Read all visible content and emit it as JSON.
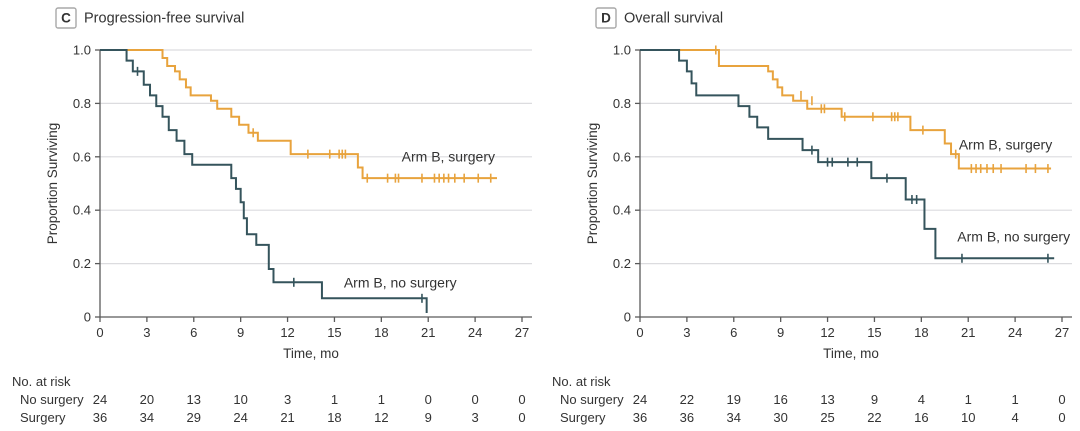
{
  "figure_labels": {
    "panel_c": "Progression-free survival",
    "panel_d": "Overall survival"
  },
  "colors": {
    "surgery": "#E8A33D",
    "no_surgery": "#35545C",
    "grid": "#dcdcdf",
    "axis": "#5a5a5a",
    "text": "#333333",
    "title_box_border": "#a8a8a8"
  },
  "chart_data": [
    {
      "type": "line",
      "subtype": "kaplan-meier-step",
      "panel_letter": "C",
      "title": "Progression-free survival",
      "xlabel": "Time, mo",
      "ylabel": "Proportion Surviving",
      "xlim": [
        0,
        27
      ],
      "ylim": [
        0,
        1.0
      ],
      "xticks": [
        0,
        3,
        6,
        9,
        12,
        15,
        18,
        21,
        24,
        27
      ],
      "xtick_labels": [
        "0",
        "3",
        "6",
        "9",
        "12",
        "15",
        "18",
        "21",
        "24",
        "27"
      ],
      "yticks": [
        0,
        0.2,
        0.4,
        0.6,
        0.8,
        1.0
      ],
      "ytick_labels": [
        "0",
        "0.2",
        "0.4",
        "0.6",
        "0.8",
        "1.0"
      ],
      "grid": "horizontal",
      "series": [
        {
          "name": "Arm B, surgery",
          "color": "#E8A33D",
          "points": [
            [
              0,
              1.0
            ],
            [
              4.0,
              0.97
            ],
            [
              4.3,
              0.94
            ],
            [
              4.8,
              0.92
            ],
            [
              5.1,
              0.89
            ],
            [
              5.5,
              0.86
            ],
            [
              5.8,
              0.83
            ],
            [
              7.1,
              0.81
            ],
            [
              7.5,
              0.78
            ],
            [
              8.4,
              0.75
            ],
            [
              8.9,
              0.72
            ],
            [
              9.5,
              0.69
            ],
            [
              10.1,
              0.66
            ],
            [
              12.2,
              0.61
            ],
            [
              16.5,
              0.56
            ],
            [
              16.8,
              0.52
            ]
          ],
          "end_x": 25.4,
          "censors": [
            [
              9.8,
              0.69
            ],
            [
              13.3,
              0.61
            ],
            [
              14.7,
              0.61
            ],
            [
              15.3,
              0.61
            ],
            [
              15.5,
              0.61
            ],
            [
              15.7,
              0.61
            ],
            [
              17.1,
              0.52
            ],
            [
              18.4,
              0.52
            ],
            [
              18.9,
              0.52
            ],
            [
              19.1,
              0.52
            ],
            [
              20.6,
              0.52
            ],
            [
              21.4,
              0.52
            ],
            [
              21.7,
              0.52
            ],
            [
              22.0,
              0.52
            ],
            [
              22.3,
              0.52
            ],
            [
              22.7,
              0.52
            ],
            [
              23.3,
              0.52
            ],
            [
              24.2,
              0.52
            ],
            [
              25.0,
              0.52
            ]
          ],
          "label": {
            "text": "Arm B, surgery",
            "x": 19.3,
            "y": 0.6
          }
        },
        {
          "name": "Arm B, no surgery",
          "color": "#35545C",
          "points": [
            [
              0,
              1.0
            ],
            [
              1.7,
              0.96
            ],
            [
              2.1,
              0.92
            ],
            [
              2.8,
              0.87
            ],
            [
              3.2,
              0.83
            ],
            [
              3.6,
              0.79
            ],
            [
              4.0,
              0.75
            ],
            [
              4.4,
              0.7
            ],
            [
              4.9,
              0.66
            ],
            [
              5.4,
              0.61
            ],
            [
              5.9,
              0.57
            ],
            [
              8.4,
              0.52
            ],
            [
              8.7,
              0.48
            ],
            [
              9.0,
              0.43
            ],
            [
              9.2,
              0.37
            ],
            [
              9.4,
              0.31
            ],
            [
              10.0,
              0.27
            ],
            [
              10.8,
              0.18
            ],
            [
              11.1,
              0.13
            ],
            [
              14.2,
              0.07
            ],
            [
              20.9,
              0.015
            ]
          ],
          "end_x": 20.9,
          "censors": [
            [
              2.4,
              0.92
            ],
            [
              12.4,
              0.13
            ],
            [
              20.6,
              0.07
            ]
          ],
          "label": {
            "text": "Arm B, no surgery",
            "x": 15.6,
            "y": 0.128
          }
        }
      ],
      "at_risk": {
        "heading": "No. at risk",
        "times": [
          0,
          3,
          6,
          9,
          12,
          15,
          18,
          21,
          24,
          27
        ],
        "rows": [
          {
            "label": "No surgery",
            "counts": [
              24,
              20,
              13,
              10,
              3,
              1,
              1,
              0,
              0,
              0
            ]
          },
          {
            "label": "Surgery",
            "counts": [
              36,
              34,
              29,
              24,
              21,
              18,
              12,
              9,
              3,
              0
            ]
          }
        ]
      }
    },
    {
      "type": "line",
      "subtype": "kaplan-meier-step",
      "panel_letter": "D",
      "title": "Overall survival",
      "xlabel": "Time, mo",
      "ylabel": "Proportion Surviving",
      "xlim": [
        0,
        27
      ],
      "ylim": [
        0,
        1.0
      ],
      "xticks": [
        0,
        3,
        6,
        9,
        12,
        15,
        18,
        21,
        24,
        27
      ],
      "xtick_labels": [
        "0",
        "3",
        "6",
        "9",
        "12",
        "15",
        "18",
        "21",
        "24",
        "27"
      ],
      "yticks": [
        0,
        0.2,
        0.4,
        0.6,
        0.8,
        1.0
      ],
      "ytick_labels": [
        "0",
        "0.2",
        "0.4",
        "0.6",
        "0.8",
        "1.0"
      ],
      "grid": "horizontal",
      "series": [
        {
          "name": "Arm B, surgery",
          "color": "#E8A33D",
          "points": [
            [
              0,
              1.0
            ],
            [
              5.05,
              0.94
            ],
            [
              8.2,
              0.92
            ],
            [
              8.5,
              0.89
            ],
            [
              8.8,
              0.86
            ],
            [
              9.1,
              0.83
            ],
            [
              9.8,
              0.81
            ],
            [
              10.7,
              0.78
            ],
            [
              12.9,
              0.75
            ],
            [
              17.3,
              0.7
            ],
            [
              19.5,
              0.65
            ],
            [
              19.9,
              0.61
            ],
            [
              20.4,
              0.556
            ]
          ],
          "end_x": 26.3,
          "censors": [
            [
              4.85,
              1.0
            ],
            [
              10.3,
              0.83
            ],
            [
              11.0,
              0.81
            ],
            [
              11.6,
              0.78
            ],
            [
              11.8,
              0.78
            ],
            [
              13.1,
              0.75
            ],
            [
              14.9,
              0.75
            ],
            [
              16.1,
              0.75
            ],
            [
              16.3,
              0.75
            ],
            [
              16.5,
              0.75
            ],
            [
              18.1,
              0.7
            ],
            [
              20.2,
              0.61
            ],
            [
              21.2,
              0.556
            ],
            [
              21.5,
              0.556
            ],
            [
              21.8,
              0.556
            ],
            [
              22.2,
              0.556
            ],
            [
              22.6,
              0.556
            ],
            [
              23.1,
              0.556
            ],
            [
              24.7,
              0.556
            ],
            [
              25.3,
              0.556
            ],
            [
              26.1,
              0.556
            ]
          ],
          "label": {
            "text": "Arm B, surgery",
            "x": 20.4,
            "y": 0.645
          }
        },
        {
          "name": "Arm B, no surgery",
          "color": "#35545C",
          "points": [
            [
              0,
              1.0
            ],
            [
              2.5,
              0.96
            ],
            [
              3.0,
              0.92
            ],
            [
              3.3,
              0.875
            ],
            [
              3.6,
              0.83
            ],
            [
              6.3,
              0.79
            ],
            [
              7.0,
              0.75
            ],
            [
              7.5,
              0.71
            ],
            [
              8.2,
              0.667
            ],
            [
              10.4,
              0.625
            ],
            [
              11.4,
              0.58
            ],
            [
              14.8,
              0.52
            ],
            [
              17.0,
              0.44
            ],
            [
              18.2,
              0.33
            ],
            [
              18.9,
              0.22
            ]
          ],
          "end_x": 26.5,
          "censors": [
            [
              11.0,
              0.625
            ],
            [
              12.0,
              0.58
            ],
            [
              12.3,
              0.58
            ],
            [
              13.3,
              0.58
            ],
            [
              13.9,
              0.58
            ],
            [
              15.8,
              0.52
            ],
            [
              17.4,
              0.44
            ],
            [
              17.7,
              0.44
            ],
            [
              20.6,
              0.22
            ],
            [
              26.1,
              0.22
            ]
          ],
          "label": {
            "text": "Arm B, no surgery",
            "x": 20.3,
            "y": 0.3
          }
        }
      ],
      "at_risk": {
        "heading": "No. at risk",
        "times": [
          0,
          3,
          6,
          9,
          12,
          15,
          18,
          21,
          24,
          27
        ],
        "rows": [
          {
            "label": "No surgery",
            "counts": [
              24,
              22,
              19,
              16,
              13,
              9,
              4,
              1,
              1,
              0
            ]
          },
          {
            "label": "Surgery",
            "counts": [
              36,
              36,
              34,
              30,
              25,
              22,
              16,
              10,
              4,
              0
            ]
          }
        ]
      }
    }
  ]
}
